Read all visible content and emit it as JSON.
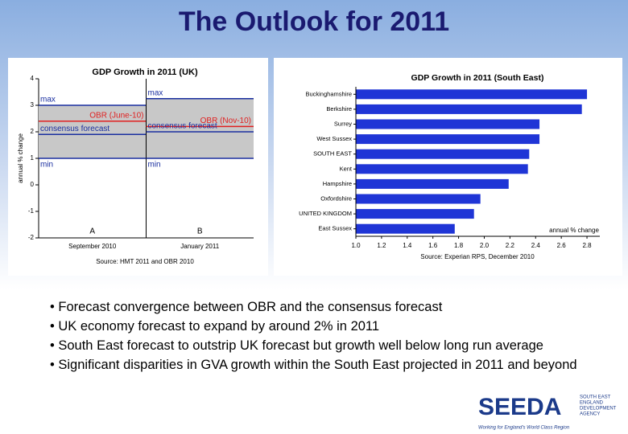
{
  "title": "The Outlook for 2011",
  "chart_data": [
    {
      "type": "range",
      "title": "GDP Growth in 2011 (UK)",
      "y_label": "annual % change",
      "categories": [
        "A",
        "B"
      ],
      "category_labels": [
        "September 2010",
        "January 2011"
      ],
      "band_color": "#c8c8c8",
      "series": [
        {
          "labels": [
            "max",
            "max"
          ],
          "values": [
            3,
            3.25
          ],
          "color": "#1a2fa0"
        },
        {
          "labels": [
            "OBR (June-10)",
            "OBR (Nov-10)"
          ],
          "values": [
            2.4,
            2.2
          ],
          "color": "#e02020"
        },
        {
          "labels": [
            "consensus forecast",
            "consensus forecast"
          ],
          "values": [
            1.9,
            2.0
          ],
          "color": "#1a2fa0"
        },
        {
          "labels": [
            "min",
            "min"
          ],
          "values": [
            1,
            1
          ],
          "color": "#1a2fa0"
        }
      ],
      "ylim": [
        -2,
        4
      ],
      "yticks": [
        4,
        3,
        2,
        1,
        0,
        -1,
        -2
      ],
      "source": "Source: HMT 2011 and OBR 2010"
    },
    {
      "type": "hbar",
      "title": "GDP Growth in 2011 (South East)",
      "categories": [
        "Buckinghamshire",
        "Berkshire",
        "Surrey",
        "West Sussex",
        "SOUTH EAST",
        "Kent",
        "Hampshire",
        "Oxfordshire",
        "UNITED KINGDOM",
        "East Sussex"
      ],
      "values": [
        2.8,
        2.76,
        2.43,
        2.43,
        2.35,
        2.34,
        2.19,
        1.97,
        1.92,
        1.77
      ],
      "color": "#1f35d6",
      "xlim": [
        1.0,
        2.9
      ],
      "xticks": [
        {
          "value": 1.0,
          "label": "1.0"
        },
        {
          "value": 1.2,
          "label": "1.2"
        },
        {
          "value": 1.4,
          "label": "1.4"
        },
        {
          "value": 1.6,
          "label": "1.6"
        },
        {
          "value": 1.8,
          "label": "1.8"
        },
        {
          "value": 2.0,
          "label": "2.0"
        },
        {
          "value": 2.2,
          "label": "2.2"
        },
        {
          "value": 2.4,
          "label": "2.4"
        },
        {
          "value": 2.6,
          "label": "2.6"
        },
        {
          "value": 2.8,
          "label": "2.8"
        }
      ],
      "annotation": "annual % change",
      "source": "Source: Experian RPS, December 2010"
    }
  ],
  "bullets": [
    "• Forecast convergence between OBR and the consensus forecast",
    "• UK economy forecast to expand by around 2% in 2011",
    "• South East forecast to outstrip UK forecast but growth well below long run average",
    "• Significant disparities in GVA growth within the South East projected in 2011 and beyond"
  ],
  "logo": {
    "name": "SEEDA",
    "agency": [
      "SOUTH EAST",
      "ENGLAND",
      "DEVELOPMENT",
      "AGENCY"
    ],
    "tagline": "Working for England's World Class Region"
  }
}
